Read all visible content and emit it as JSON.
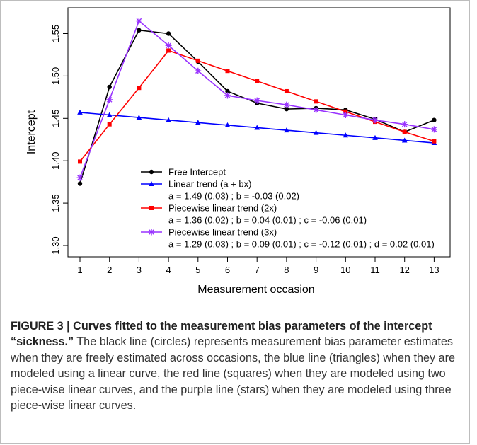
{
  "chart_data": {
    "type": "line",
    "xlabel": "Measurement occasion",
    "ylabel": "Intercept",
    "x": [
      1,
      2,
      3,
      4,
      5,
      6,
      7,
      8,
      9,
      10,
      11,
      12,
      13
    ],
    "xticks": [
      "1",
      "2",
      "3",
      "4",
      "5",
      "6",
      "7",
      "8",
      "9",
      "10",
      "11",
      "12",
      "13"
    ],
    "yticks": [
      "1.30",
      "1.35",
      "1.40",
      "1.45",
      "1.50",
      "1.55"
    ],
    "ylim": [
      1.295,
      1.567
    ],
    "grid": false,
    "legend_position": "bottom-center",
    "series": [
      {
        "name": "Free Intercept",
        "color": "#000000",
        "marker": "circle",
        "values": [
          1.373,
          1.487,
          1.554,
          1.55,
          1.517,
          1.482,
          1.468,
          1.461,
          1.462,
          1.46,
          1.449,
          1.434,
          1.448
        ]
      },
      {
        "name": "Linear trend (a + bx)",
        "detail": "a = 1.49 (0.03) ; b = -0.03 (0.02)",
        "color": "#0000ff",
        "marker": "triangle",
        "values": [
          1.457,
          1.454,
          1.451,
          1.448,
          1.445,
          1.442,
          1.439,
          1.436,
          1.433,
          1.43,
          1.427,
          1.424,
          1.421
        ]
      },
      {
        "name": "Piecewise linear trend (2x)",
        "detail": "a = 1.36 (0.02) ; b = 0.04 (0.01) ; c = -0.06 (0.01)",
        "color": "#ff0000",
        "marker": "square",
        "values": [
          1.399,
          1.443,
          1.486,
          1.53,
          1.518,
          1.506,
          1.494,
          1.482,
          1.47,
          1.458,
          1.446,
          1.434,
          1.423
        ]
      },
      {
        "name": "Piecewise linear trend (3x)",
        "detail": "a = 1.29 (0.03) ; b = 0.09 (0.01) ; c = -0.12 (0.01) ; d = 0.02 (0.01)",
        "color": "#9933ff",
        "marker": "star",
        "values": [
          1.38,
          1.472,
          1.565,
          1.536,
          1.506,
          1.477,
          1.471,
          1.466,
          1.46,
          1.454,
          1.448,
          1.443,
          1.437
        ]
      }
    ]
  },
  "caption": {
    "label": "FIGURE 3 | Curves fitted to the measurement bias parameters of the intercept “sickness.”",
    "text": " The black line (circles) represents measurement bias parameter estimates when they are freely estimated across occasions, the blue line (triangles) when they are modeled using a linear curve, the red line (squares) when they are modeled using two piece-wise linear curves, and the purple line (stars) when they are modeled using three piece-wise linear curves."
  }
}
